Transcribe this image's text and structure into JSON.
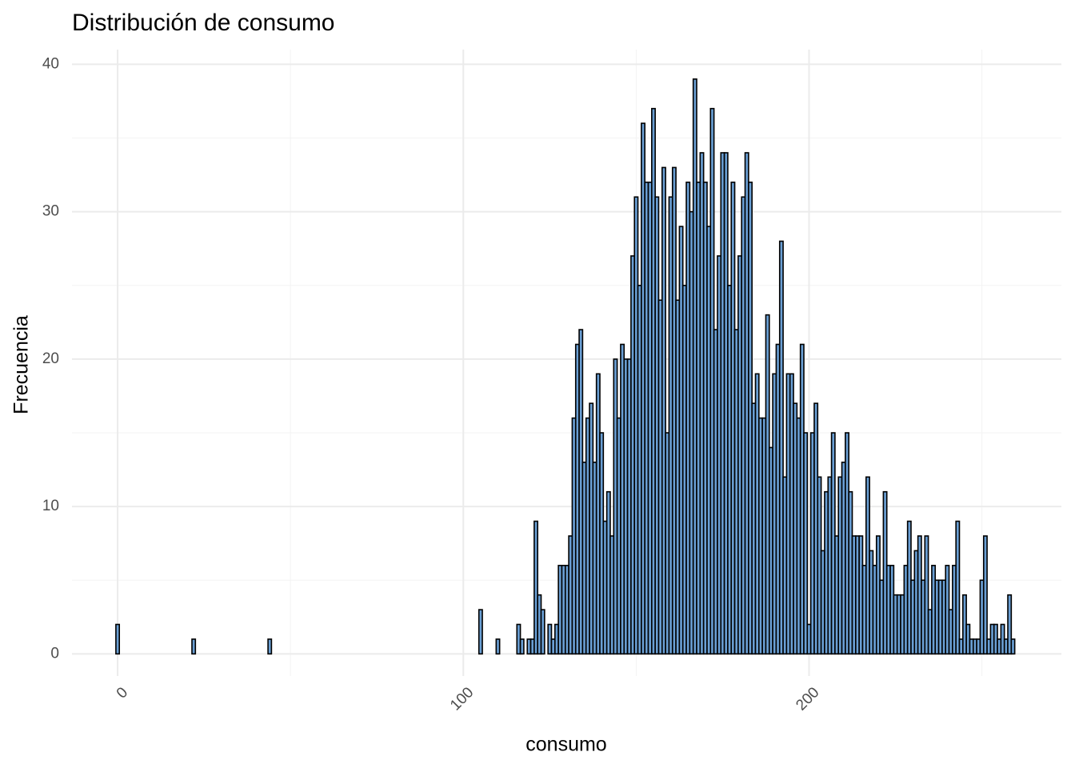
{
  "chart_data": {
    "type": "histogram",
    "title": "Distribución de consumo",
    "xlabel": "consumo",
    "ylabel": "Frecuencia",
    "bins": [
      -0.5,
      0.5,
      1.5,
      2.5,
      3.5,
      4.5,
      5.5,
      6.5,
      7.5,
      8.5,
      9.5,
      10.5,
      11.5,
      12.5,
      13.5,
      14.5,
      15.5,
      16.5,
      17.5,
      18.5,
      19.5,
      20.5,
      21.5,
      22.5,
      23.5,
      24.5,
      25.5,
      26.5,
      27.5,
      28.5,
      29.5,
      30.5,
      31.5,
      32.5,
      33.5,
      34.5,
      35.5,
      36.5,
      37.5,
      38.5,
      39.5,
      40.5,
      41.5,
      42.5,
      43.5,
      44.5,
      45.5,
      46.5,
      47.5,
      48.5,
      49.5,
      50.5,
      51.5,
      52.5,
      53.5,
      54.5,
      55.5,
      56.5,
      57.5,
      58.5,
      59.5,
      60.5,
      61.5,
      62.5,
      63.5,
      64.5,
      65.5,
      66.5,
      67.5,
      68.5,
      69.5,
      70.5,
      71.5,
      72.5,
      73.5,
      74.5,
      75.5,
      76.5,
      77.5,
      78.5,
      79.5,
      80.5,
      81.5,
      82.5,
      83.5,
      84.5,
      85.5,
      86.5,
      87.5,
      88.5,
      89.5,
      90.5,
      91.5,
      92.5,
      93.5,
      94.5,
      95.5,
      96.5,
      97.5,
      98.5,
      99.5,
      100.5,
      101.5,
      102.5,
      103.5,
      104.5,
      105.5,
      106.5,
      107.5,
      108.5,
      109.5,
      110.5,
      111.5,
      112.5,
      113.5,
      114.5,
      115.5,
      116.5,
      117.5,
      118.5,
      119.5,
      120.5,
      121.5,
      122.5,
      123.5,
      124.5,
      125.5,
      126.5,
      127.5,
      128.5,
      129.5,
      130.5,
      131.5,
      132.5,
      133.5,
      134.5,
      135.5,
      136.5,
      137.5,
      138.5,
      139.5,
      140.5,
      141.5,
      142.5,
      143.5,
      144.5,
      145.5,
      146.5,
      147.5,
      148.5,
      149.5,
      150.5,
      151.5,
      152.5,
      153.5,
      154.5,
      155.5,
      156.5,
      157.5,
      158.5,
      159.5,
      160.5,
      161.5,
      162.5,
      163.5,
      164.5,
      165.5,
      166.5,
      167.5,
      168.5,
      169.5,
      170.5,
      171.5,
      172.5,
      173.5,
      174.5,
      175.5,
      176.5,
      177.5,
      178.5,
      179.5,
      180.5,
      181.5,
      182.5,
      183.5,
      184.5,
      185.5,
      186.5,
      187.5,
      188.5,
      189.5,
      190.5,
      191.5,
      192.5,
      193.5,
      194.5,
      195.5,
      196.5,
      197.5,
      198.5,
      199.5,
      200.5,
      201.5,
      202.5,
      203.5,
      204.5,
      205.5,
      206.5,
      207.5,
      208.5,
      209.5,
      210.5,
      211.5,
      212.5,
      213.5,
      214.5,
      215.5,
      216.5,
      217.5,
      218.5,
      219.5,
      220.5,
      221.5,
      222.5,
      223.5,
      224.5,
      225.5,
      226.5,
      227.5,
      228.5,
      229.5,
      230.5,
      231.5,
      232.5,
      233.5,
      234.5,
      235.5,
      236.5,
      237.5,
      238.5,
      239.5,
      240.5,
      241.5,
      242.5,
      243.5,
      244.5,
      245.5,
      246.5,
      247.5,
      248.5,
      249.5,
      250.5,
      251.5,
      252.5,
      253.5,
      254.5,
      255.5,
      256.5,
      257.5,
      258.5,
      259.5
    ],
    "values": [
      2,
      0,
      0,
      0,
      0,
      0,
      0,
      0,
      0,
      0,
      0,
      0,
      0,
      0,
      0,
      0,
      0,
      0,
      0,
      0,
      0,
      0,
      1,
      0,
      0,
      0,
      0,
      0,
      0,
      0,
      0,
      0,
      0,
      0,
      0,
      0,
      0,
      0,
      0,
      0,
      0,
      0,
      0,
      0,
      1,
      0,
      0,
      0,
      0,
      0,
      0,
      0,
      0,
      0,
      0,
      0,
      0,
      0,
      0,
      0,
      0,
      0,
      0,
      0,
      0,
      0,
      0,
      0,
      0,
      0,
      0,
      0,
      0,
      0,
      0,
      0,
      0,
      0,
      0,
      0,
      0,
      0,
      0,
      0,
      0,
      0,
      0,
      0,
      0,
      0,
      0,
      0,
      0,
      0,
      0,
      0,
      0,
      0,
      0,
      0,
      0,
      0,
      0,
      0,
      0,
      3,
      0,
      0,
      0,
      0,
      1,
      0,
      0,
      0,
      0,
      0,
      2,
      1,
      0,
      1,
      1,
      9,
      4,
      3,
      0,
      2,
      1,
      2,
      6,
      6,
      6,
      8,
      16,
      21,
      22,
      13,
      16,
      17,
      13,
      19,
      15,
      9,
      11,
      8,
      20,
      16,
      21,
      20,
      20,
      27,
      31,
      25,
      36,
      32,
      32,
      37,
      31,
      24,
      33,
      15,
      31,
      33,
      24,
      29,
      25,
      32,
      30,
      39,
      32,
      34,
      32,
      29,
      37,
      22,
      27,
      34,
      34,
      25,
      32,
      22,
      27,
      31,
      34,
      32,
      17,
      19,
      16,
      16,
      23,
      14,
      19,
      21,
      28,
      12,
      19,
      19,
      17,
      16,
      21,
      15,
      2,
      15,
      17,
      12,
      7,
      11,
      12,
      15,
      8,
      12,
      13,
      15,
      11,
      8,
      8,
      8,
      6,
      12,
      7,
      6,
      8,
      5,
      11,
      6,
      6,
      4,
      4,
      4,
      6,
      9,
      5,
      7,
      8,
      5,
      8,
      3,
      6,
      5,
      5,
      5,
      6,
      3,
      6,
      9,
      1,
      4,
      2,
      1,
      1,
      1,
      5,
      8,
      1,
      2,
      2,
      1,
      2,
      1,
      4,
      1
    ],
    "color": "#6a9fd4",
    "edgecolor": "#000000",
    "xlim": [
      -13.2,
      273
    ],
    "xticks": [
      0,
      100,
      200
    ],
    "xminor": [
      50,
      150,
      250
    ],
    "ylim": [
      -1.5,
      41
    ],
    "yticks": [
      0,
      10,
      20,
      30,
      40
    ],
    "yminor": [
      5,
      15,
      25,
      35
    ],
    "grid": true
  }
}
